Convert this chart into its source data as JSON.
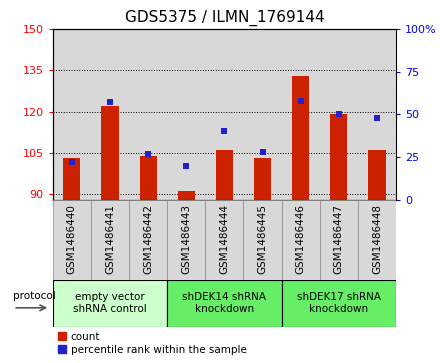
{
  "title": "GDS5375 / ILMN_1769144",
  "samples": [
    "GSM1486440",
    "GSM1486441",
    "GSM1486442",
    "GSM1486443",
    "GSM1486444",
    "GSM1486445",
    "GSM1486446",
    "GSM1486447",
    "GSM1486448"
  ],
  "counts": [
    103,
    122,
    104,
    91,
    106,
    103,
    133,
    119,
    106
  ],
  "percentiles": [
    22,
    57,
    27,
    20,
    40,
    28,
    58,
    50,
    48
  ],
  "ylim_left": [
    88,
    150
  ],
  "ylim_right": [
    0,
    100
  ],
  "yticks_left": [
    90,
    105,
    120,
    135,
    150
  ],
  "yticks_right": [
    0,
    25,
    50,
    75,
    100
  ],
  "bar_color": "#cc2200",
  "dot_color": "#2222cc",
  "bar_bottom": 88,
  "groups": [
    {
      "label": "empty vector\nshRNA control",
      "start": 0,
      "end": 3,
      "color": "#ccffcc"
    },
    {
      "label": "shDEK14 shRNA\nknockdown",
      "start": 3,
      "end": 6,
      "color": "#66ee66"
    },
    {
      "label": "shDEK17 shRNA\nknockdown",
      "start": 6,
      "end": 9,
      "color": "#66ee66"
    }
  ],
  "legend_count_label": "count",
  "legend_pct_label": "percentile rank within the sample",
  "protocol_label": "protocol",
  "title_fontsize": 11,
  "tick_fontsize": 8,
  "xlabel_fontsize": 7.5,
  "group_label_fontsize": 7.5
}
